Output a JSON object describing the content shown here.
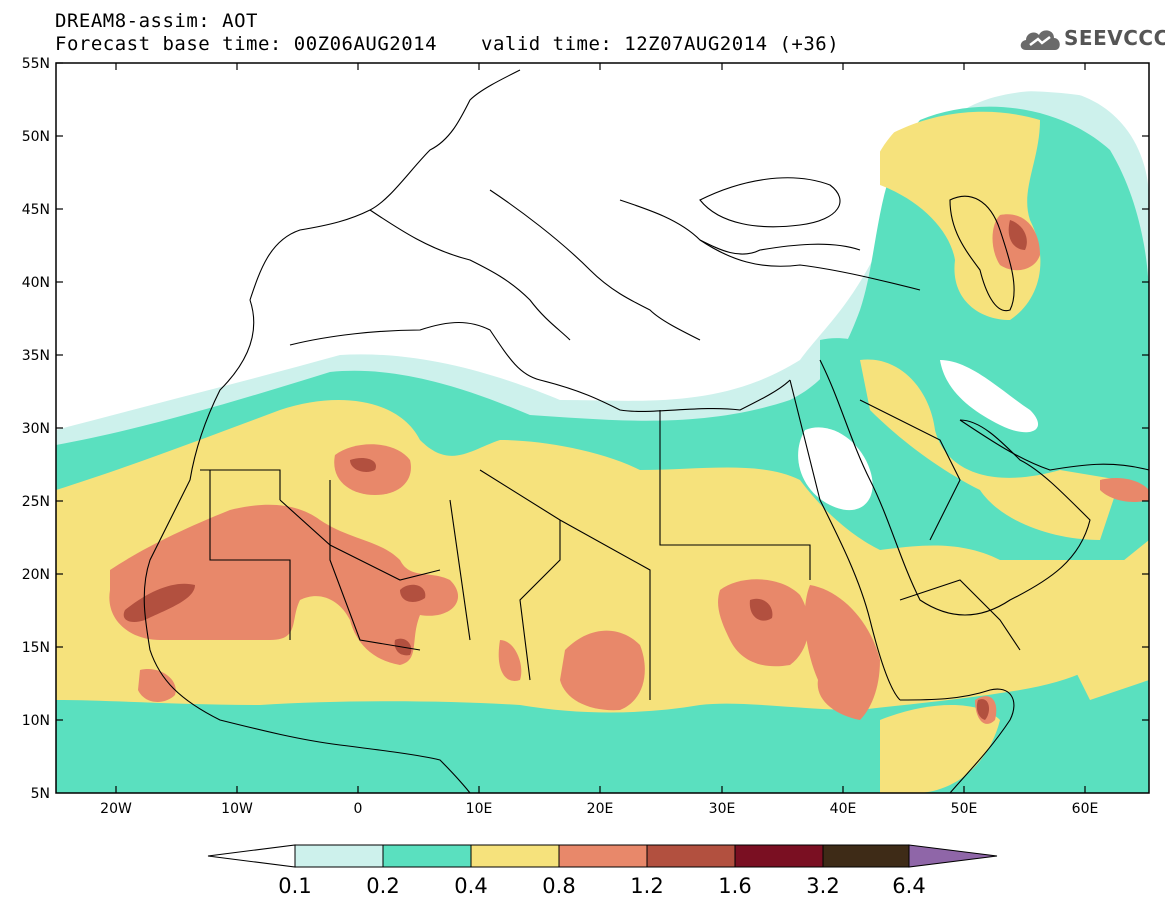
{
  "header": {
    "title": "DREAM8-assim: AOT",
    "base_time": "Forecast base time: 00Z06AUG2014",
    "valid_time": "valid time: 12Z07AUG2014 (+36)"
  },
  "logo": {
    "text": "SEEVCCC"
  },
  "axes": {
    "lat_labels": [
      "55N",
      "50N",
      "45N",
      "40N",
      "35N",
      "30N",
      "25N",
      "20N",
      "15N",
      "10N",
      "5N"
    ],
    "lon_labels": [
      "20W",
      "10W",
      "0",
      "10E",
      "20E",
      "30E",
      "40E",
      "50E",
      "60E"
    ]
  },
  "colorbar": {
    "labels": [
      "0.1",
      "0.2",
      "0.4",
      "0.8",
      "1.2",
      "1.6",
      "3.2",
      "6.4"
    ],
    "colors": [
      "#cdf1ec",
      "#5ae0bf",
      "#f6e27c",
      "#e8886a",
      "#b2503f",
      "#7a0f22",
      "#3e2b17",
      "#8f66a8"
    ]
  }
}
